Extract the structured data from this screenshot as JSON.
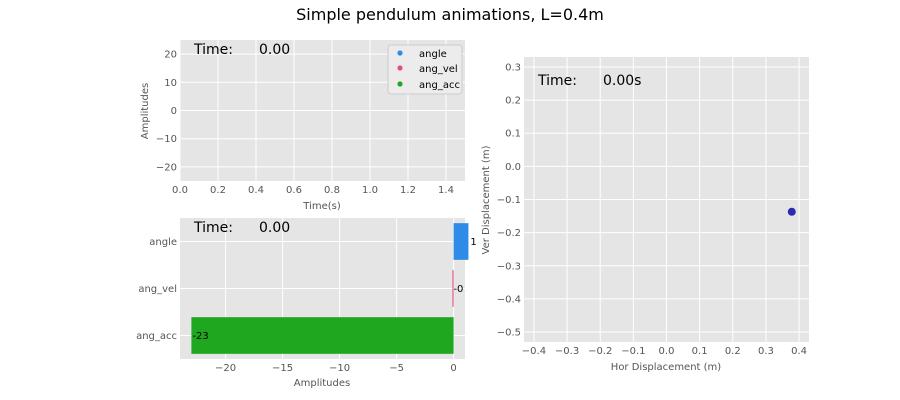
{
  "figure": {
    "title": "Simple pendulum animations, L=0.4m"
  },
  "chart_data": [
    {
      "type": "line",
      "name": "time-series",
      "xlabel": "Time(s)",
      "ylabel": "Amplitudes",
      "xlim": [
        0,
        1.5
      ],
      "ylim": [
        -25,
        25
      ],
      "xticks": [
        "0.0",
        "0.2",
        "0.4",
        "0.6",
        "0.8",
        "1.0",
        "1.2",
        "1.4"
      ],
      "yticks": [
        "20",
        "10",
        "0",
        "−10",
        "−20"
      ],
      "grid": true,
      "time_label": "Time:",
      "time_value": "0.00",
      "legend": {
        "placement": "top-right",
        "entries": [
          {
            "name": "angle",
            "color": "#2e8be6"
          },
          {
            "name": "ang_vel",
            "color": "#e5507a"
          },
          {
            "name": "ang_acc",
            "color": "#1fa81f"
          }
        ]
      },
      "series": [
        {
          "name": "angle",
          "color": "#2e8be6",
          "x": [],
          "y": []
        },
        {
          "name": "ang_vel",
          "color": "#e5507a",
          "x": [],
          "y": []
        },
        {
          "name": "ang_acc",
          "color": "#1fa81f",
          "x": [],
          "y": []
        }
      ]
    },
    {
      "type": "bar",
      "orientation": "horizontal",
      "xlabel": "Amplitudes",
      "xlim": [
        -24,
        1
      ],
      "xticks": [
        "−20",
        "−15",
        "−10",
        "−5",
        "0"
      ],
      "grid": true,
      "time_label": "Time:",
      "time_value": "0.00",
      "categories": [
        "angle",
        "ang_vel",
        "ang_acc"
      ],
      "values": [
        1.3,
        -0.1,
        -23
      ],
      "value_labels": [
        "1",
        "-0",
        "-23"
      ],
      "colors": [
        "#2e8be6",
        "#e5507a",
        "#1fa81f"
      ]
    },
    {
      "type": "scatter",
      "xlabel": "Hor Displacement (m)",
      "ylabel": "Ver Displacement (m)",
      "xlim": [
        -0.43,
        0.43
      ],
      "ylim": [
        -0.53,
        0.33
      ],
      "xticks": [
        "−0.4",
        "−0.3",
        "−0.2",
        "−0.1",
        "0.0",
        "0.1",
        "0.2",
        "0.3",
        "0.4"
      ],
      "yticks": [
        "0.3",
        "0.2",
        "0.1",
        "0.0",
        "−0.1",
        "−0.2",
        "−0.3",
        "−0.4",
        "−0.5"
      ],
      "grid": true,
      "time_label": "Time:",
      "time_value": "0.00s",
      "points": [
        {
          "x": 0.378,
          "y": -0.137
        }
      ],
      "color": "#2b2bb0"
    }
  ]
}
